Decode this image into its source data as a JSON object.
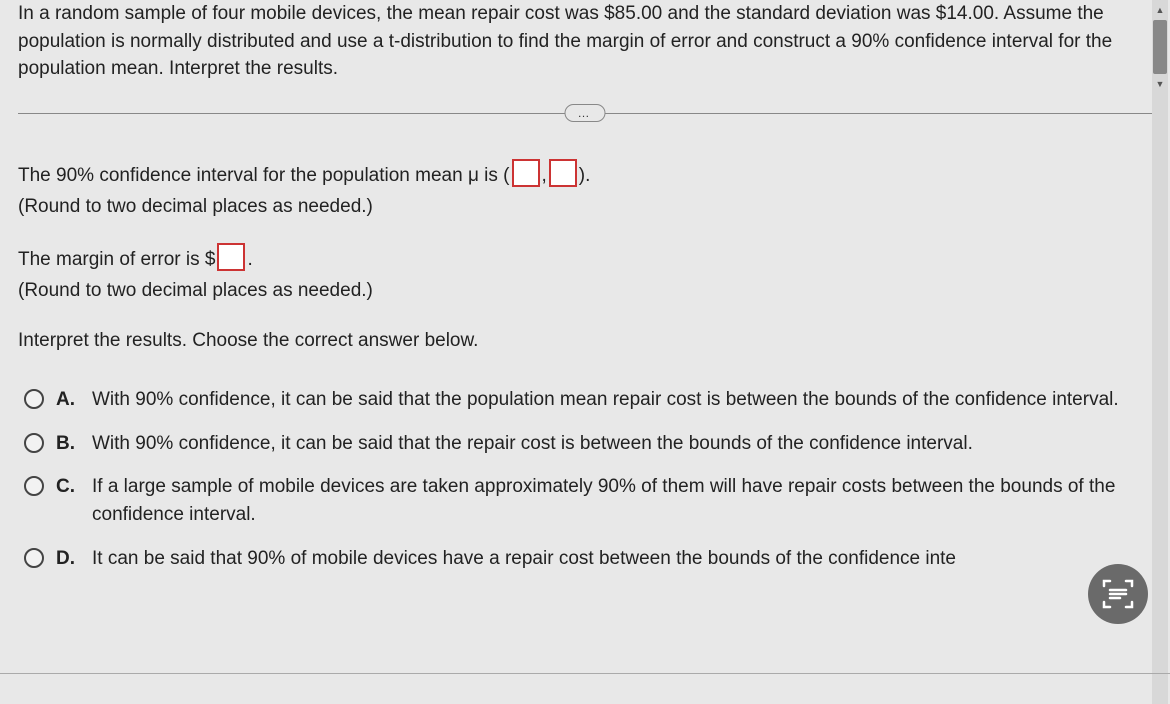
{
  "problem": {
    "text": "In a random sample of four mobile devices, the mean repair cost was $85.00 and the standard deviation was $14.00. Assume the population is normally distributed and use a t-distribution to find the margin of error and construct a 90% confidence interval for the population mean. Interpret the results."
  },
  "divider_label": "…",
  "q1": {
    "prefix": "The 90% confidence interval for the population mean μ is (",
    "sep": ",",
    "suffix": ").",
    "hint": "(Round to two decimal places as needed.)"
  },
  "q2": {
    "prefix": "The margin of error is $",
    "suffix": ".",
    "hint": "(Round to two decimal places as needed.)"
  },
  "interpret_prompt": "Interpret the results. Choose the correct answer below.",
  "options": [
    {
      "letter": "A.",
      "text": "With 90% confidence, it can be said that the population mean repair cost is between the bounds of the confidence interval."
    },
    {
      "letter": "B.",
      "text": "With 90% confidence, it can be said that the repair cost is between the bounds of the confidence interval."
    },
    {
      "letter": "C.",
      "text": "If a large sample of mobile devices are taken approximately 90% of them will have repair costs between the bounds of the confidence interval."
    },
    {
      "letter": "D.",
      "text": "It can be said that 90% of mobile devices have a repair cost between the bounds of the confidence inte"
    }
  ],
  "colors": {
    "background": "#e8e8e8",
    "text": "#222222",
    "input_border": "#cc3333",
    "radio_border": "#444444",
    "float_btn": "#6a6a6a",
    "scroll_thumb": "#888888"
  }
}
